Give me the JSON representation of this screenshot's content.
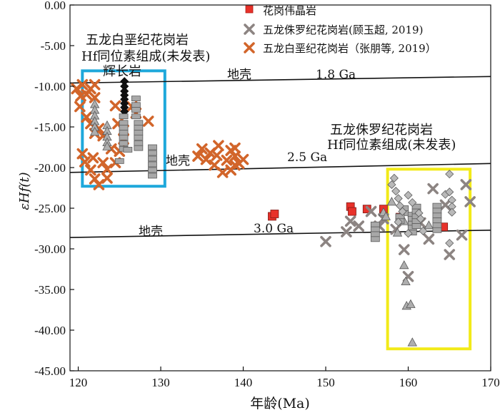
{
  "chart_data": {
    "type": "scatter",
    "title": "",
    "xlabel": "年龄(Ma)",
    "ylabel": "εHf(t)",
    "xlim": [
      119,
      170
    ],
    "ylim": [
      -45,
      0
    ],
    "xticks": [
      "120",
      "130",
      "140",
      "150",
      "160",
      "170"
    ],
    "yticks": [
      "0.00",
      "-5.00",
      "-10.00",
      "-15.00",
      "-20.00",
      "-25.00",
      "-30.00",
      "-35.00",
      "-40.00",
      "-45.00"
    ],
    "grid": false,
    "legend_position": "top-right",
    "legend": [
      {
        "label": "花岗伟晶岩",
        "marker": "square",
        "color": "#e8312a"
      },
      {
        "label": "五龙侏罗纪花岗岩(顾玉超, 2019)",
        "marker": "x",
        "color": "#8c8482"
      },
      {
        "label": "五龙白垩纪花岗岩（张朋等, 2019）",
        "marker": "x",
        "color": "#d2652a"
      }
    ],
    "crust_lines": [
      {
        "label": "地壳",
        "model_age": "1.8 Ga",
        "points": [
          [
            119,
            -9.6
          ],
          [
            170,
            -8.8
          ]
        ]
      },
      {
        "label": "地壳",
        "model_age": "2.5 Ga",
        "points": [
          [
            119,
            -20.6
          ],
          [
            170,
            -19.5
          ]
        ]
      },
      {
        "label": "地壳",
        "model_age": "3.0 Ga",
        "points": [
          [
            119,
            -28.6
          ],
          [
            170,
            -27.7
          ]
        ]
      }
    ],
    "annotations": [
      {
        "text": "五龙白垩纪花岗岩",
        "group": "blue"
      },
      {
        "text": "Hf同位素组成(未发表)",
        "group": "blue"
      },
      {
        "text": "辉长岩",
        "group": "blue"
      },
      {
        "text": "五龙侏罗纪花岗岩",
        "group": "yellow"
      },
      {
        "text": "Hf同位素组成(未发表)",
        "group": "yellow"
      }
    ],
    "boxes": [
      {
        "name": "white-cretaceous-box",
        "color": "#1ea8db",
        "x": [
          120.5,
          130.5
        ],
        "y": [
          -22.3,
          -8.1
        ]
      },
      {
        "name": "jurassic-box",
        "color": "#f2ea18",
        "x": [
          157.5,
          167.5
        ],
        "y": [
          -42.3,
          -20.2
        ]
      }
    ],
    "series": [
      {
        "name": "花岗伟晶岩",
        "marker": "square",
        "color": "#e8312a",
        "points": [
          [
            143.5,
            -26.0
          ],
          [
            143.8,
            -25.7
          ],
          [
            153.0,
            -24.8
          ],
          [
            153.2,
            -25.4
          ],
          [
            155.0,
            -25.1
          ],
          [
            157.0,
            -25.1
          ],
          [
            159.0,
            -26.1
          ],
          [
            164.3,
            -27.3
          ]
        ]
      },
      {
        "name": "五龙侏罗纪花岗岩(顾玉超, 2019)",
        "marker": "x",
        "color": "#8c8482",
        "points": [
          [
            150.0,
            -29.1
          ],
          [
            153.0,
            -26.6
          ],
          [
            154.0,
            -27.2
          ],
          [
            155.5,
            -25.4
          ],
          [
            156.5,
            -27.2
          ],
          [
            157.0,
            -26.3
          ],
          [
            159.5,
            -30.1
          ],
          [
            160.0,
            -33.4
          ],
          [
            161.5,
            -26.8
          ],
          [
            162.5,
            -28.8
          ],
          [
            163.0,
            -22.6
          ],
          [
            164.5,
            -24.6
          ],
          [
            165.0,
            -30.7
          ],
          [
            167.0,
            -22.1
          ],
          [
            167.5,
            -24.2
          ],
          [
            166.5,
            -28.3
          ],
          [
            158.5,
            -27.6
          ],
          [
            152.5,
            -27.9
          ]
        ]
      },
      {
        "name": "五龙白垩纪花岗岩（张朋等, 2019）",
        "marker": "x",
        "color": "#d2652a",
        "points": [
          [
            119.8,
            -10.3
          ],
          [
            120.2,
            -12.5
          ],
          [
            120.5,
            -9.8
          ],
          [
            121.0,
            -11.0
          ],
          [
            121.5,
            -10.3
          ],
          [
            122.0,
            -9.8
          ],
          [
            122.0,
            -11.4
          ],
          [
            121.0,
            -13.8
          ],
          [
            120.5,
            -18.3
          ],
          [
            120.8,
            -19.3
          ],
          [
            121.5,
            -20.3
          ],
          [
            122.0,
            -21.4
          ],
          [
            122.5,
            -22.1
          ],
          [
            121.8,
            -18.8
          ],
          [
            123.0,
            -19.4
          ],
          [
            123.5,
            -20.2
          ],
          [
            124.0,
            -17.7
          ],
          [
            124.5,
            -19.4
          ],
          [
            125.0,
            -18.0
          ],
          [
            125.5,
            -15.4
          ],
          [
            124.5,
            -12.4
          ],
          [
            125.5,
            -16.5
          ],
          [
            126.5,
            -12.5
          ],
          [
            127.0,
            -13.3
          ],
          [
            128.5,
            -14.3
          ],
          [
            123.0,
            -16.1
          ],
          [
            124.8,
            -14.6
          ],
          [
            121.5,
            -14.6
          ],
          [
            122.0,
            -15.8
          ],
          [
            122.5,
            -15.2
          ],
          [
            123.5,
            -21.3
          ],
          [
            120.3,
            -11.2
          ],
          [
            135.0,
            -17.7
          ],
          [
            135.5,
            -19.0
          ],
          [
            136.0,
            -18.2
          ],
          [
            136.5,
            -19.7
          ],
          [
            137.0,
            -17.3
          ],
          [
            137.5,
            -20.6
          ],
          [
            138.0,
            -19.1
          ],
          [
            138.5,
            -17.9
          ],
          [
            139.0,
            -18.6
          ],
          [
            139.5,
            -19.5
          ],
          [
            136.8,
            -18.5
          ],
          [
            138.5,
            -20.3
          ],
          [
            139.0,
            -17.6
          ],
          [
            134.5,
            -18.6
          ],
          [
            140.0,
            -19.0
          ],
          [
            139.0,
            -19.7
          ]
        ]
      },
      {
        "name": "",
        "marker": "diamond",
        "color": "#111111",
        "points": [
          [
            125.6,
            -9.4
          ],
          [
            125.6,
            -10.0
          ],
          [
            125.6,
            -10.6
          ],
          [
            125.6,
            -11.1
          ],
          [
            125.6,
            -11.6
          ],
          [
            125.6,
            -12.1
          ],
          [
            125.6,
            -12.6
          ],
          [
            125.6,
            -13.1
          ]
        ]
      },
      {
        "name": "",
        "marker": "triangle",
        "color": "#aeaeae",
        "points": [
          [
            122.0,
            -12.2
          ],
          [
            122.0,
            -12.9
          ],
          [
            122.0,
            -13.6
          ],
          [
            122.0,
            -14.3
          ],
          [
            122.0,
            -15.0
          ],
          [
            122.0,
            -15.6
          ],
          [
            123.5,
            -14.8
          ],
          [
            123.5,
            -15.5
          ],
          [
            123.5,
            -16.2
          ],
          [
            123.5,
            -16.9
          ],
          [
            123.5,
            -17.4
          ],
          [
            157.0,
            -25.5
          ],
          [
            157.3,
            -26.0
          ],
          [
            158.0,
            -24.2
          ],
          [
            158.7,
            -28.0
          ],
          [
            159.5,
            -26.6
          ],
          [
            159.5,
            -32.0
          ],
          [
            159.7,
            -34.0
          ],
          [
            159.8,
            -37.0
          ],
          [
            160.3,
            -36.8
          ],
          [
            160.5,
            -41.5
          ],
          [
            161.0,
            -25.0
          ],
          [
            162.5,
            -27.1
          ]
        ]
      },
      {
        "name": "",
        "marker": "square",
        "color": "#a8a8a8",
        "points": [
          [
            125.5,
            -13.7
          ],
          [
            125.5,
            -14.5
          ],
          [
            125.5,
            -15.1
          ],
          [
            125.5,
            -15.7
          ],
          [
            125.5,
            -16.3
          ],
          [
            125.5,
            -17.0
          ],
          [
            125.5,
            -17.7
          ],
          [
            126.0,
            -17.8
          ],
          [
            127.0,
            -11.5
          ],
          [
            127.0,
            -12.3
          ],
          [
            127.0,
            -12.9
          ],
          [
            127.0,
            -13.7
          ],
          [
            127.3,
            -14.5
          ],
          [
            127.3,
            -15.1
          ],
          [
            127.3,
            -15.7
          ],
          [
            127.3,
            -16.3
          ],
          [
            127.3,
            -17.0
          ],
          [
            127.3,
            -17.6
          ],
          [
            125.0,
            -19.2
          ],
          [
            129.0,
            -17.5
          ],
          [
            129.0,
            -18.2
          ],
          [
            129.0,
            -18.9
          ],
          [
            129.0,
            -19.6
          ],
          [
            129.0,
            -20.3
          ],
          [
            129.0,
            -21.0
          ],
          [
            156.0,
            -27.0
          ],
          [
            156.0,
            -27.6
          ],
          [
            156.0,
            -28.2
          ],
          [
            156.0,
            -28.8
          ],
          [
            159.5,
            -25.0
          ],
          [
            159.5,
            -25.6
          ],
          [
            160.5,
            -25.8
          ],
          [
            160.5,
            -26.3
          ],
          [
            160.5,
            -26.9
          ],
          [
            160.5,
            -27.4
          ],
          [
            160.5,
            -28.0
          ],
          [
            161.0,
            -24.8
          ],
          [
            161.0,
            -25.4
          ],
          [
            161.0,
            -26.0
          ],
          [
            161.0,
            -26.6
          ],
          [
            161.0,
            -27.2
          ],
          [
            163.5,
            -24.7
          ],
          [
            163.5,
            -25.3
          ],
          [
            163.5,
            -25.9
          ],
          [
            163.5,
            -26.5
          ],
          [
            163.5,
            -27.1
          ],
          [
            163.5,
            -27.7
          ],
          [
            159.0,
            -26.0
          ],
          [
            159.0,
            -26.6
          ]
        ]
      },
      {
        "name": "",
        "marker": "diamond",
        "color": "#b9b9b9",
        "points": [
          [
            158.0,
            -22.1
          ],
          [
            158.3,
            -21.3
          ],
          [
            158.5,
            -22.9
          ],
          [
            158.8,
            -23.8
          ],
          [
            159.0,
            -24.7
          ],
          [
            159.3,
            -25.4
          ],
          [
            160.0,
            -23.4
          ],
          [
            160.5,
            -24.3
          ],
          [
            161.3,
            -25.6
          ],
          [
            161.5,
            -26.3
          ],
          [
            164.5,
            -23.3
          ],
          [
            165.0,
            -20.8
          ],
          [
            165.0,
            -23.0
          ],
          [
            165.3,
            -24.0
          ],
          [
            165.3,
            -24.8
          ],
          [
            165.3,
            -25.5
          ],
          [
            165.0,
            -29.3
          ],
          [
            160.0,
            -28.1
          ],
          [
            161.8,
            -27.8
          ],
          [
            158.8,
            -26.7
          ]
        ]
      }
    ]
  }
}
